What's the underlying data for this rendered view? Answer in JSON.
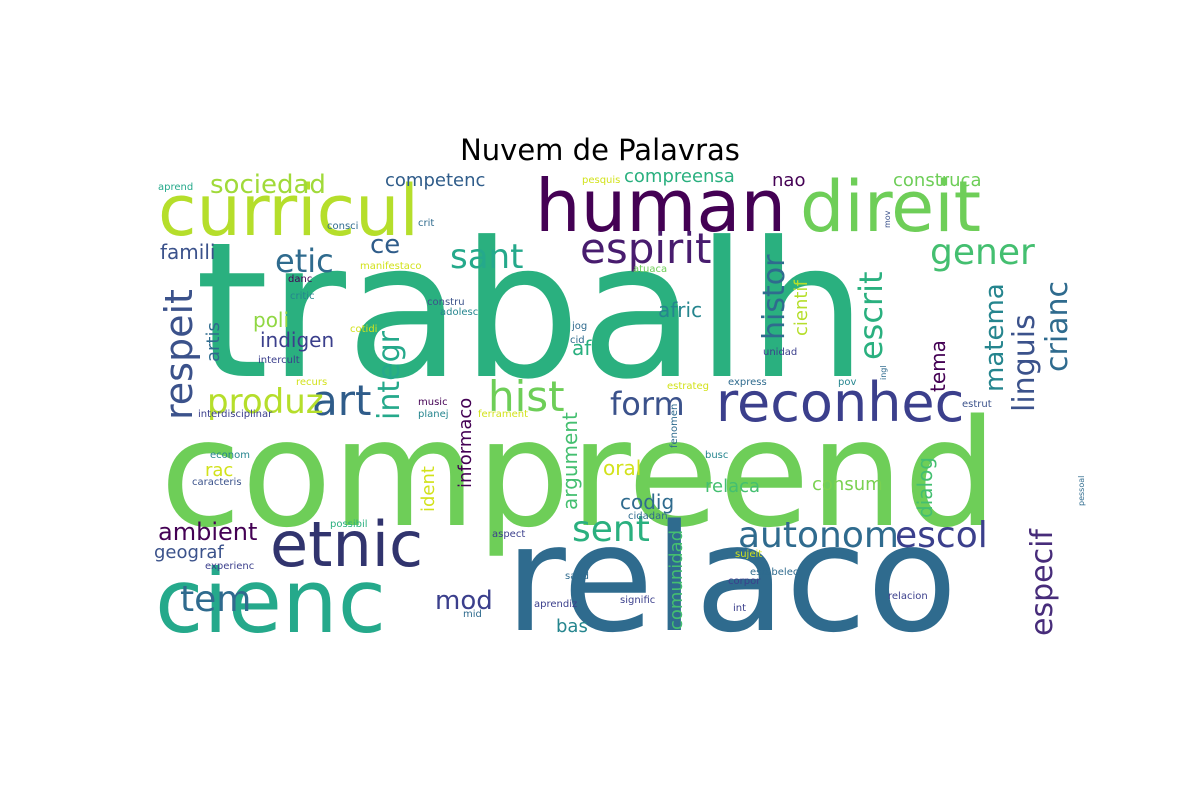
{
  "title": "Nuvem de Palavras",
  "palette": {
    "deep_purple": "#440154",
    "indigo": "#3b3f8c",
    "blue": "#2f6b8e",
    "teal": "#25858e",
    "green": "#2ab07f",
    "lime_green": "#6ece58",
    "yellow_green": "#b5de2b",
    "yellow": "#fde725"
  },
  "words": [
    {
      "text": "trabalh",
      "color": "#2ab07f"
    },
    {
      "text": "compreend",
      "color": "#6ece58"
    },
    {
      "text": "relaco",
      "color": "#2f6b8e"
    },
    {
      "text": "human",
      "color": "#440154"
    },
    {
      "text": "curricul",
      "color": "#b5de2b"
    },
    {
      "text": "direit",
      "color": "#6ece58"
    },
    {
      "text": "cienc",
      "color": "#25a98b"
    },
    {
      "text": "etnic",
      "color": "#31346e"
    },
    {
      "text": "reconhec",
      "color": "#3b3f8c"
    },
    {
      "text": "espirit",
      "color": "#481c6e"
    },
    {
      "text": "hist",
      "color": "#6ece58"
    },
    {
      "text": "art",
      "color": "#2f5c8a"
    },
    {
      "text": "autonom",
      "color": "#2f6b8e"
    },
    {
      "text": "escol",
      "color": "#3b3f8c"
    },
    {
      "text": "form",
      "color": "#3b528b"
    },
    {
      "text": "sent",
      "color": "#2ab07f"
    },
    {
      "text": "etic",
      "color": "#2f6b8e"
    },
    {
      "text": "sant",
      "color": "#25a98b"
    },
    {
      "text": "gener",
      "color": "#44bf70"
    },
    {
      "text": "produz",
      "color": "#b5de2b"
    },
    {
      "text": "respeit",
      "color": "#3b528b"
    },
    {
      "text": "histor",
      "color": "#2f6b8e"
    },
    {
      "text": "escrit",
      "color": "#2ab07f"
    },
    {
      "text": "crianc",
      "color": "#2f6b8e"
    },
    {
      "text": "linguis",
      "color": "#3b528b"
    },
    {
      "text": "matema",
      "color": "#25858e"
    },
    {
      "text": "integr",
      "color": "#25a98b"
    },
    {
      "text": "especif",
      "color": "#472c7a"
    },
    {
      "text": "tem",
      "color": "#2f6b8e"
    },
    {
      "text": "sociedad",
      "color": "#a0da39"
    },
    {
      "text": "ambient",
      "color": "#440154"
    },
    {
      "text": "mod",
      "color": "#3b3f8c"
    },
    {
      "text": "competenc",
      "color": "#2f5c8a"
    },
    {
      "text": "compreensa",
      "color": "#2ab07f"
    },
    {
      "text": "construca",
      "color": "#6ece58"
    },
    {
      "text": "nao",
      "color": "#440154"
    },
    {
      "text": "ce",
      "color": "#2f5c8a"
    },
    {
      "text": "famili",
      "color": "#3b528b"
    },
    {
      "text": "poli",
      "color": "#90d743"
    },
    {
      "text": "indigen",
      "color": "#3b3f8c"
    },
    {
      "text": "afric",
      "color": "#25858e"
    },
    {
      "text": "afr",
      "color": "#2ab07f"
    },
    {
      "text": "tema",
      "color": "#440154"
    },
    {
      "text": "artis",
      "color": "#2f6b8e"
    },
    {
      "text": "cientif",
      "color": "#b5de2b"
    },
    {
      "text": "codig",
      "color": "#2f6b8e"
    },
    {
      "text": "relaca",
      "color": "#44bf70"
    },
    {
      "text": "consum",
      "color": "#7ad151"
    },
    {
      "text": "dialog",
      "color": "#44bf70"
    },
    {
      "text": "argument",
      "color": "#44bf70"
    },
    {
      "text": "informaco",
      "color": "#440154"
    },
    {
      "text": "ident",
      "color": "#d2e21b"
    },
    {
      "text": "oral",
      "color": "#d2e21b"
    },
    {
      "text": "rac",
      "color": "#d2e21b"
    },
    {
      "text": "geograf",
      "color": "#3b528b"
    },
    {
      "text": "bas",
      "color": "#25858e"
    },
    {
      "text": "comunidad",
      "color": "#44bf70"
    },
    {
      "text": "aprend",
      "color": "#25a98b"
    },
    {
      "text": "pesquis",
      "color": "#d2e21b"
    },
    {
      "text": "consci",
      "color": "#2f6b8e"
    },
    {
      "text": "crit",
      "color": "#2f6b8e"
    },
    {
      "text": "mov",
      "color": "#3b528b"
    },
    {
      "text": "danc",
      "color": "#440154"
    },
    {
      "text": "critic",
      "color": "#25858e"
    },
    {
      "text": "manifestaco",
      "color": "#d2e21b"
    },
    {
      "text": "atuaca",
      "color": "#6ece58"
    },
    {
      "text": "constru",
      "color": "#3b528b"
    },
    {
      "text": "adolesc",
      "color": "#25858e"
    },
    {
      "text": "cotidi",
      "color": "#d2e21b"
    },
    {
      "text": "jog",
      "color": "#2f6b8e"
    },
    {
      "text": "cid",
      "color": "#2f6b8e"
    },
    {
      "text": "intercult",
      "color": "#3b3f8c"
    },
    {
      "text": "unidad",
      "color": "#3b3f8c"
    },
    {
      "text": "recurs",
      "color": "#d2e21b"
    },
    {
      "text": "express",
      "color": "#2f6b8e"
    },
    {
      "text": "pov",
      "color": "#25858e"
    },
    {
      "text": "ingl",
      "color": "#2f6b8e"
    },
    {
      "text": "estrateg",
      "color": "#d2e21b"
    },
    {
      "text": "music",
      "color": "#440154"
    },
    {
      "text": "planej",
      "color": "#25858e"
    },
    {
      "text": "interdisciplinar",
      "color": "#3b3f8c"
    },
    {
      "text": "ferrament",
      "color": "#d2e21b"
    },
    {
      "text": "fenomen",
      "color": "#2f6b8e"
    },
    {
      "text": "estrut",
      "color": "#3b528b"
    },
    {
      "text": "econom",
      "color": "#25858e"
    },
    {
      "text": "busc",
      "color": "#25858e"
    },
    {
      "text": "caracteris",
      "color": "#3b528b"
    },
    {
      "text": "pessoal",
      "color": "#2f6b8e"
    },
    {
      "text": "possibil",
      "color": "#2ab07f"
    },
    {
      "text": "cidadan",
      "color": "#2f6b8e"
    },
    {
      "text": "aspect",
      "color": "#3b3f8c"
    },
    {
      "text": "sujeit",
      "color": "#d2e21b"
    },
    {
      "text": "experienc",
      "color": "#3b3f8c"
    },
    {
      "text": "saud",
      "color": "#2f6b8e"
    },
    {
      "text": "corpor",
      "color": "#3b3f8c"
    },
    {
      "text": "estabelec",
      "color": "#2f6b8e"
    },
    {
      "text": "signific",
      "color": "#3b3f8c"
    },
    {
      "text": "aprendiz",
      "color": "#3b3f8c"
    },
    {
      "text": "relacion",
      "color": "#3b3f8c"
    },
    {
      "text": "int",
      "color": "#3b3f8c"
    },
    {
      "text": "mid",
      "color": "#2f6b8e"
    }
  ]
}
